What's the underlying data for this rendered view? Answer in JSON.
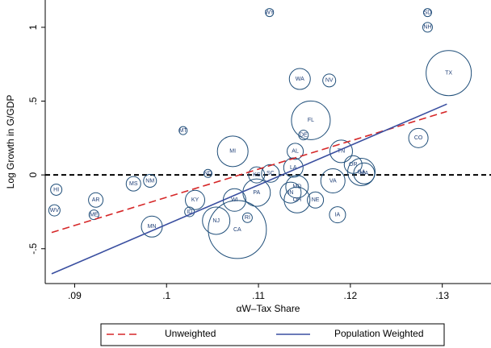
{
  "chart_data": {
    "type": "bubble",
    "y_label": "Log Growth in G/GDP",
    "x_label": "αW–Tax Share",
    "point_labels": [
      "WY",
      "SD",
      "NH",
      "TX",
      "WA",
      "NV",
      "FL",
      "MT",
      "DE",
      "MI",
      "CO",
      "AL",
      "TN",
      "OR",
      "LA",
      "ND",
      "KS",
      "SC",
      "GA",
      "MA",
      "HI",
      "MS",
      "NM",
      "AR",
      "KY",
      "WV",
      "ME",
      "ID",
      "MN",
      "NJ",
      "CA",
      "RI",
      "WI",
      "VA",
      "MD",
      "OH",
      "NE",
      "IA",
      "IN",
      "PA"
    ],
    "x": [
      0.1112,
      0.1284,
      0.1284,
      0.1307,
      0.1145,
      0.1177,
      0.1157,
      0.1018,
      0.1149,
      0.1072,
      0.1274,
      0.114,
      0.119,
      0.1203,
      0.1138,
      0.1045,
      0.1098,
      0.1113,
      0.1212,
      0.1215,
      0.088,
      0.0964,
      0.0982,
      0.0923,
      0.1031,
      0.0878,
      0.0921,
      0.1025,
      0.0984,
      0.1054,
      0.1077,
      0.1088,
      0.1074,
      0.1181,
      0.1142,
      0.1142,
      0.1162,
      0.1186,
      0.1135,
      0.1098
    ],
    "values": [
      1.1,
      1.1,
      1.0,
      0.69,
      0.65,
      0.64,
      0.37,
      0.3,
      0.27,
      0.16,
      0.25,
      0.16,
      0.16,
      0.07,
      0.05,
      0.01,
      0.0,
      0.01,
      0.02,
      0.01,
      -0.1,
      -0.06,
      -0.04,
      -0.17,
      -0.17,
      -0.24,
      -0.27,
      -0.25,
      -0.35,
      -0.31,
      -0.37,
      -0.29,
      -0.17,
      -0.04,
      -0.08,
      -0.17,
      -0.17,
      -0.27,
      -0.12,
      -0.12
    ],
    "sizes": [
      25,
      25,
      36,
      784,
      169,
      64,
      576,
      25,
      36,
      361,
      144,
      100,
      196,
      121,
      144,
      25,
      100,
      121,
      289,
      169,
      49,
      81,
      64,
      81,
      144,
      49,
      36,
      36,
      169,
      289,
      1296,
      36,
      196,
      225,
      196,
      256,
      100,
      100,
      169,
      289
    ],
    "lines": [
      {
        "name": "Unweighted",
        "color": "#d62728",
        "dashed": true,
        "x": [
          0.0875,
          0.1305
        ],
        "values": [
          -0.39,
          0.43
        ]
      },
      {
        "name": "Population Weighted",
        "color": "#3a4fa0",
        "dashed": false,
        "x": [
          0.0875,
          0.1305
        ],
        "values": [
          -0.67,
          0.48
        ]
      }
    ],
    "reference_line": 0,
    "xlim": [
      0.0868,
      0.1353
    ],
    "ylim": [
      -0.736,
      1.185
    ],
    "xticks": [
      {
        "value": 0.09,
        "label": ".09"
      },
      {
        "value": 0.1,
        "label": ".1"
      },
      {
        "value": 0.11,
        "label": ".11"
      },
      {
        "value": 0.12,
        "label": ".12"
      },
      {
        "value": 0.13,
        "label": ".13"
      }
    ],
    "yticks": [
      {
        "value": -0.5,
        "label": "-.5"
      },
      0,
      {
        "value": 0.5,
        "label": ".5"
      },
      1
    ],
    "bubble_color": "#1f4e79"
  }
}
